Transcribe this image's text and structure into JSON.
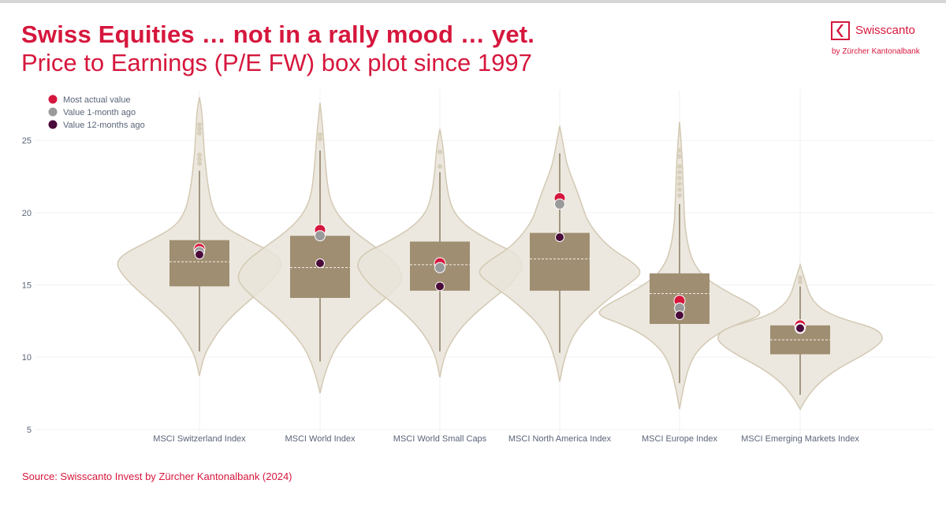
{
  "header": {
    "title": "Swiss Equities … not in a rally mood … yet.",
    "subtitle": "Price to Earnings (P/E FW) box plot since 1997"
  },
  "logo": {
    "name": "Swisscanto",
    "sub": "by Zürcher Kantonalbank"
  },
  "footer": {
    "source": "Source: Swisscanto Invest by Zürcher Kantonalbank (2024)"
  },
  "colors": {
    "violin_fill": "#e9e4d9",
    "violin_stroke": "#d3c9b3",
    "box_fill": "#a08e72",
    "whisker": "#8a7a62",
    "median_line": "#f2ede4",
    "outlier": "#d8cfbd",
    "most_actual": "#d6173d",
    "one_month": "#9a9a9a",
    "twelve_month": "#4a0a3a",
    "grid": "#f0f0f0",
    "text": "#5a6478"
  },
  "chart_data": {
    "type": "violin-box",
    "ylim": [
      4.5,
      28.5
    ],
    "yticks": [
      5,
      10,
      15,
      20,
      25
    ],
    "grid": true,
    "legend": {
      "position": "top-left",
      "items": [
        {
          "key": "most_actual",
          "label": "Most actual value"
        },
        {
          "key": "one_month",
          "label": "Value 1-month ago"
        },
        {
          "key": "twelve_month",
          "label": "Value 12-months ago"
        }
      ]
    },
    "categories": [
      "MSCI Switzerland Index",
      "MSCI World Index",
      "MSCI World Small Caps",
      "MSCI North America Index",
      "MSCI Europe Index",
      "MSCI Emerging Markets Index"
    ],
    "series": [
      {
        "category": "MSCI Switzerland Index",
        "q1": 14.9,
        "median": 16.6,
        "q3": 18.1,
        "whisker_low": 10.4,
        "whisker_high": 22.9,
        "violin_min": 8.7,
        "violin_max": 28.0,
        "violin_profile": [
          [
            8.7,
            0.0
          ],
          [
            10,
            0.05
          ],
          [
            11,
            0.14
          ],
          [
            12,
            0.26
          ],
          [
            13,
            0.42
          ],
          [
            14,
            0.62
          ],
          [
            15,
            0.82
          ],
          [
            16,
            0.97
          ],
          [
            16.6,
            1.0
          ],
          [
            17.2,
            0.9
          ],
          [
            18,
            0.62
          ],
          [
            19,
            0.3
          ],
          [
            20,
            0.18
          ],
          [
            21,
            0.13
          ],
          [
            22,
            0.1
          ],
          [
            23,
            0.08
          ],
          [
            24,
            0.06
          ],
          [
            25,
            0.05
          ],
          [
            26,
            0.04
          ],
          [
            27,
            0.03
          ],
          [
            28.0,
            0.0
          ]
        ],
        "outliers": [
          23.4,
          23.7,
          24.0,
          25.5,
          25.8,
          26.1
        ],
        "most_actual": 17.5,
        "one_month": 17.3,
        "twelve_month": 17.1
      },
      {
        "category": "MSCI World Index",
        "q1": 14.1,
        "median": 16.2,
        "q3": 18.4,
        "whisker_low": 9.7,
        "whisker_high": 24.3,
        "violin_min": 7.5,
        "violin_max": 27.6,
        "violin_profile": [
          [
            7.5,
            0.0
          ],
          [
            8.5,
            0.04
          ],
          [
            10,
            0.13
          ],
          [
            11,
            0.23
          ],
          [
            12,
            0.38
          ],
          [
            13,
            0.56
          ],
          [
            14,
            0.78
          ],
          [
            15,
            0.96
          ],
          [
            15.6,
            1.0
          ],
          [
            16.5,
            0.92
          ],
          [
            17.5,
            0.7
          ],
          [
            18.5,
            0.45
          ],
          [
            19.5,
            0.26
          ],
          [
            20.5,
            0.15
          ],
          [
            21.5,
            0.1
          ],
          [
            23,
            0.07
          ],
          [
            24.5,
            0.05
          ],
          [
            26,
            0.03
          ],
          [
            27.6,
            0.0
          ]
        ],
        "outliers": [
          25.1,
          25.4
        ],
        "most_actual": 18.8,
        "one_month": 18.4,
        "twelve_month": 16.5
      },
      {
        "category": "MSCI World Small Caps",
        "q1": 14.6,
        "median": 16.4,
        "q3": 18.0,
        "whisker_low": 10.4,
        "whisker_high": 22.8,
        "violin_min": 8.6,
        "violin_max": 25.8,
        "violin_profile": [
          [
            8.6,
            0.0
          ],
          [
            10,
            0.05
          ],
          [
            11,
            0.13
          ],
          [
            12,
            0.25
          ],
          [
            13,
            0.42
          ],
          [
            14,
            0.63
          ],
          [
            15,
            0.85
          ],
          [
            16,
            0.98
          ],
          [
            16.5,
            1.0
          ],
          [
            17.2,
            0.92
          ],
          [
            18,
            0.62
          ],
          [
            19,
            0.33
          ],
          [
            20,
            0.17
          ],
          [
            21,
            0.11
          ],
          [
            22,
            0.08
          ],
          [
            23,
            0.06
          ],
          [
            24.5,
            0.04
          ],
          [
            25.8,
            0.0
          ]
        ],
        "outliers": [
          23.2,
          24.2
        ],
        "most_actual": 16.5,
        "one_month": 16.2,
        "twelve_month": 14.9
      },
      {
        "category": "MSCI North America Index",
        "q1": 14.6,
        "median": 16.8,
        "q3": 18.6,
        "whisker_low": 10.3,
        "whisker_high": 24.1,
        "violin_min": 8.3,
        "violin_max": 26.0,
        "violin_profile": [
          [
            8.3,
            0.0
          ],
          [
            9.5,
            0.04
          ],
          [
            11,
            0.12
          ],
          [
            12,
            0.22
          ],
          [
            13,
            0.38
          ],
          [
            14,
            0.58
          ],
          [
            15,
            0.82
          ],
          [
            15.8,
            1.0
          ],
          [
            16.5,
            0.9
          ],
          [
            17.5,
            0.62
          ],
          [
            18.5,
            0.45
          ],
          [
            19.5,
            0.33
          ],
          [
            20.5,
            0.27
          ],
          [
            21.5,
            0.21
          ],
          [
            22.5,
            0.14
          ],
          [
            23.5,
            0.08
          ],
          [
            24.5,
            0.05
          ],
          [
            26.0,
            0.0
          ]
        ],
        "outliers": [],
        "most_actual": 21.0,
        "one_month": 20.6,
        "twelve_month": 18.3
      },
      {
        "category": "MSCI Europe Index",
        "q1": 12.3,
        "median": 14.4,
        "q3": 15.8,
        "whisker_low": 8.2,
        "whisker_high": 20.6,
        "violin_min": 6.4,
        "violin_max": 26.3,
        "violin_profile": [
          [
            6.4,
            0.0
          ],
          [
            8,
            0.05
          ],
          [
            9.5,
            0.12
          ],
          [
            10.5,
            0.22
          ],
          [
            11.5,
            0.42
          ],
          [
            12.3,
            0.7
          ],
          [
            12.9,
            1.0
          ],
          [
            13.5,
            0.92
          ],
          [
            14.5,
            0.58
          ],
          [
            15.5,
            0.3
          ],
          [
            16.5,
            0.17
          ],
          [
            17.5,
            0.11
          ],
          [
            18.5,
            0.08
          ],
          [
            19.5,
            0.06
          ],
          [
            21,
            0.05
          ],
          [
            22.5,
            0.04
          ],
          [
            24,
            0.03
          ],
          [
            26.3,
            0.0
          ]
        ],
        "outliers": [
          21.2,
          21.6,
          22.0,
          22.4,
          22.8,
          23.2,
          23.9,
          24.3
        ],
        "most_actual": 13.9,
        "one_month": 13.4,
        "twelve_month": 12.9
      },
      {
        "category": "MSCI Emerging Markets Index",
        "q1": 10.2,
        "median": 11.2,
        "q3": 12.2,
        "whisker_low": 7.4,
        "whisker_high": 14.9,
        "violin_min": 6.4,
        "violin_max": 16.4,
        "violin_profile": [
          [
            6.4,
            0.0
          ],
          [
            7.2,
            0.08
          ],
          [
            8.2,
            0.22
          ],
          [
            9.2,
            0.45
          ],
          [
            10.2,
            0.78
          ],
          [
            11,
            0.98
          ],
          [
            11.5,
            1.0
          ],
          [
            12,
            0.9
          ],
          [
            12.5,
            0.6
          ],
          [
            13,
            0.35
          ],
          [
            13.7,
            0.18
          ],
          [
            14.5,
            0.1
          ],
          [
            15.5,
            0.05
          ],
          [
            16.4,
            0.0
          ]
        ],
        "outliers": [
          15.2,
          15.5
        ],
        "most_actual": 12.2,
        "one_month": 12.0,
        "twelve_month": 12.0
      }
    ]
  }
}
